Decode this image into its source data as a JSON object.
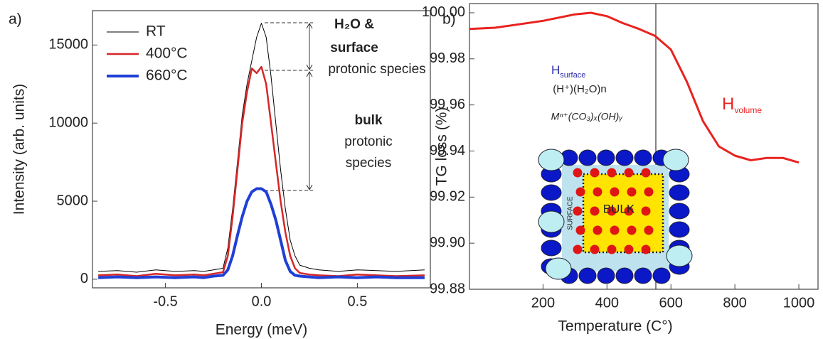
{
  "chart_data": [
    {
      "type": "line",
      "panel_label": "a)",
      "x_label": "Energy (meV)",
      "y_label": "Intensity (arb. units)",
      "x": [
        -0.85,
        -0.75,
        -0.65,
        -0.55,
        -0.45,
        -0.35,
        -0.3,
        -0.25,
        -0.2,
        -0.175,
        -0.15,
        -0.125,
        -0.1,
        -0.075,
        -0.05,
        -0.025,
        0,
        0.025,
        0.05,
        0.075,
        0.1,
        0.125,
        0.15,
        0.175,
        0.2,
        0.25,
        0.3,
        0.4,
        0.5,
        0.6,
        0.7,
        0.85
      ],
      "series": [
        {
          "name": "RT",
          "color": "#000000",
          "width": 1,
          "values": [
            500,
            550,
            450,
            600,
            500,
            550,
            500,
            600,
            700,
            2000,
            4500,
            7500,
            10500,
            12500,
            14000,
            15500,
            16400,
            15500,
            13000,
            10000,
            7000,
            4500,
            2500,
            1500,
            900,
            700,
            600,
            500,
            600,
            550,
            500,
            600
          ]
        },
        {
          "name": "400°C",
          "color": "#d62728",
          "width": 2.5,
          "values": [
            250,
            300,
            200,
            350,
            250,
            300,
            250,
            350,
            450,
            1500,
            4000,
            7000,
            10000,
            12000,
            13500,
            13200,
            13600,
            12500,
            10000,
            7500,
            5000,
            3000,
            1500,
            700,
            400,
            300,
            250,
            200,
            300,
            250,
            200,
            250
          ]
        },
        {
          "name": "660°C",
          "color": "#1f3fd6",
          "width": 4,
          "values": [
            100,
            150,
            100,
            150,
            100,
            150,
            100,
            200,
            250,
            600,
            1500,
            2800,
            4000,
            5000,
            5600,
            5800,
            5800,
            5600,
            4800,
            3800,
            2500,
            1200,
            500,
            250,
            200,
            150,
            100,
            150,
            100,
            150,
            100,
            100
          ]
        }
      ],
      "xlim": [
        -0.88,
        0.88
      ],
      "ylim": [
        -550,
        17200
      ],
      "xticks": [
        -0.5,
        {
          "value": 0,
          "label": "0.0"
        },
        0.5
      ],
      "yticks": [
        0,
        5000,
        10000,
        15000
      ],
      "legend": "upper left",
      "annotations": [
        "H₂O &",
        "surface",
        "protonic species",
        "bulk",
        "protonic",
        "species"
      ]
    },
    {
      "type": "line",
      "panel_label": "b)",
      "x_label": "Temperature (C°)",
      "y_label": "TG loss (%)",
      "x": [
        -30,
        50,
        100,
        200,
        300,
        350,
        400,
        450,
        500,
        550,
        600,
        650,
        700,
        750,
        800,
        850,
        900,
        950,
        1000
      ],
      "series": [
        {
          "color": "#e8231f",
          "width": 3,
          "values": [
            99.993,
            99.9935,
            99.9945,
            99.9965,
            99.9993,
            100.0,
            99.9985,
            99.9955,
            99.993,
            99.99,
            99.984,
            99.97,
            99.953,
            99.942,
            99.938,
            99.936,
            99.937,
            99.937,
            99.935
          ]
        }
      ],
      "xlim": [
        -30,
        1060
      ],
      "ylim": [
        99.88,
        100.004
      ],
      "xticks": [
        200,
        400,
        600,
        800,
        1000
      ],
      "yticks": [
        99.88,
        {
          "value": 99.9,
          "label": "99.90"
        },
        99.92,
        99.94,
        99.96,
        99.98,
        {
          "value": 100,
          "label": "100.00"
        }
      ],
      "annotations": [
        "H",
        "surface",
        "(H⁺)(H₂O)n",
        "Mⁿ⁺(CO₃)ₓ(OH)ᵧ",
        "H",
        "volume",
        "BULK",
        "SURFACE"
      ]
    }
  ]
}
